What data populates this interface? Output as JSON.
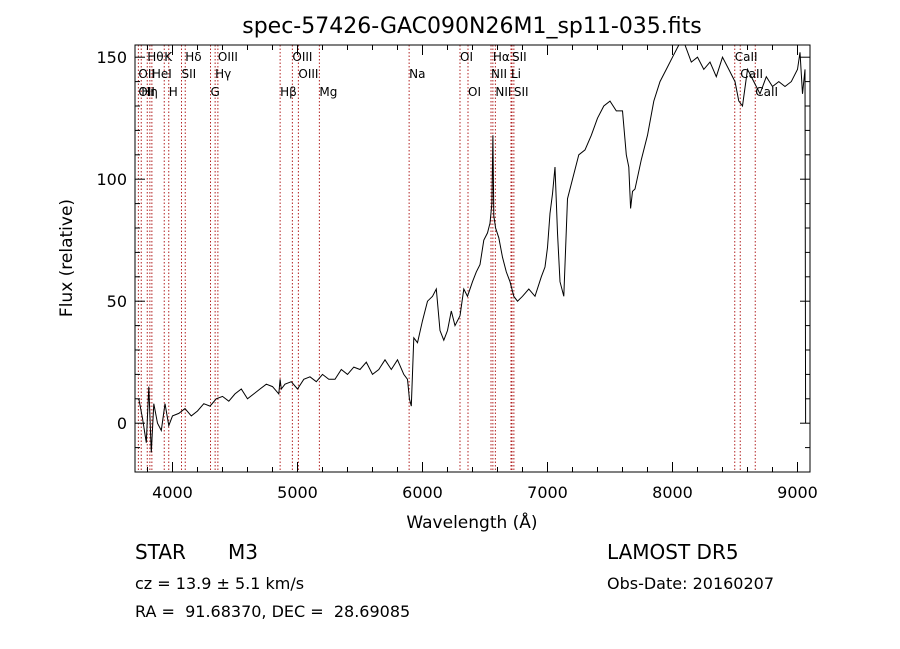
{
  "chart_data": {
    "type": "line",
    "title": "spec-57426-GAC090N26M1_sp11-035.fits",
    "xlabel": "Wavelength (Å)",
    "ylabel": "Flux (relative)",
    "xlim": [
      3700,
      9100
    ],
    "ylim": [
      -20,
      155
    ],
    "x_ticks": [
      4000,
      5000,
      6000,
      7000,
      8000,
      9000
    ],
    "x_tick_labels": [
      "4000",
      "5000",
      "6000",
      "7000",
      "8000",
      "9000"
    ],
    "y_ticks": [
      0,
      50,
      100,
      150
    ],
    "y_tick_labels": [
      "0",
      "50",
      "100",
      "150"
    ],
    "grid": false,
    "series": [
      {
        "color": "#000000",
        "x": [
          3730,
          3760,
          3790,
          3810,
          3830,
          3850,
          3880,
          3910,
          3940,
          3970,
          4000,
          4050,
          4100,
          4150,
          4200,
          4250,
          4300,
          4350,
          4400,
          4450,
          4500,
          4550,
          4600,
          4650,
          4700,
          4750,
          4800,
          4850,
          4861,
          4870,
          4900,
          4950,
          5000,
          5050,
          5100,
          5150,
          5200,
          5250,
          5300,
          5350,
          5400,
          5450,
          5500,
          5550,
          5600,
          5650,
          5700,
          5750,
          5800,
          5850,
          5880,
          5895,
          5910,
          5930,
          5960,
          6000,
          6040,
          6080,
          6110,
          6140,
          6170,
          6200,
          6230,
          6260,
          6300,
          6330,
          6360,
          6400,
          6430,
          6460,
          6490,
          6520,
          6540,
          6555,
          6563,
          6570,
          6585,
          6610,
          6640,
          6670,
          6700,
          6730,
          6760,
          6800,
          6850,
          6900,
          6950,
          6980,
          7000,
          7020,
          7040,
          7060,
          7080,
          7100,
          7130,
          7160,
          7200,
          7250,
          7300,
          7350,
          7400,
          7450,
          7500,
          7550,
          7600,
          7630,
          7650,
          7665,
          7680,
          7700,
          7750,
          7800,
          7850,
          7900,
          7950,
          8000,
          8050,
          8100,
          8150,
          8200,
          8250,
          8300,
          8350,
          8400,
          8450,
          8500,
          8530,
          8560,
          8600,
          8650,
          8700,
          8750,
          8800,
          8850,
          8900,
          8950,
          9000,
          9020,
          9040,
          9060,
          9065
        ],
        "y": [
          10,
          2,
          -8,
          15,
          -12,
          8,
          0,
          -3,
          8,
          -1,
          3,
          4,
          6,
          3,
          5,
          8,
          7,
          10,
          11,
          9,
          12,
          14,
          10,
          12,
          14,
          16,
          15,
          12,
          18,
          14,
          16,
          17,
          14,
          18,
          19,
          17,
          20,
          18,
          18,
          22,
          20,
          23,
          22,
          25,
          20,
          22,
          26,
          22,
          26,
          20,
          18,
          10,
          7,
          35,
          33,
          42,
          50,
          52,
          55,
          38,
          34,
          38,
          46,
          40,
          44,
          55,
          52,
          58,
          62,
          65,
          75,
          78,
          82,
          90,
          118,
          85,
          80,
          76,
          68,
          62,
          58,
          52,
          50,
          52,
          55,
          52,
          60,
          64,
          72,
          86,
          94,
          105,
          78,
          58,
          52,
          92,
          100,
          110,
          112,
          118,
          125,
          130,
          132,
          128,
          128,
          110,
          105,
          88,
          95,
          96,
          108,
          118,
          132,
          140,
          145,
          150,
          155,
          155,
          148,
          150,
          145,
          148,
          142,
          150,
          145,
          140,
          132,
          130,
          145,
          140,
          135,
          142,
          138,
          140,
          138,
          140,
          145,
          152,
          135,
          145,
          0
        ]
      }
    ],
    "lines": [
      {
        "wavelength": 3727,
        "label": "OII"
      },
      {
        "wavelength": 3750,
        "label": "Hη"
      },
      {
        "wavelength": 3798,
        "label": "Hθ"
      },
      {
        "wavelength": 3819,
        "label": "HeI"
      },
      {
        "wavelength": 3835,
        "label": "Hη"
      },
      {
        "wavelength": 3934,
        "label": "K"
      },
      {
        "wavelength": 3970,
        "label": "H"
      },
      {
        "wavelength": 4072,
        "label": "SII"
      },
      {
        "wavelength": 4102,
        "label": "Hδ"
      },
      {
        "wavelength": 4304,
        "label": "G"
      },
      {
        "wavelength": 4341,
        "label": "Hγ"
      },
      {
        "wavelength": 4363,
        "label": "OIII"
      },
      {
        "wavelength": 4861,
        "label": "Hβ"
      },
      {
        "wavelength": 4959,
        "label": "OIII"
      },
      {
        "wavelength": 5007,
        "label": "OIII"
      },
      {
        "wavelength": 5175,
        "label": "Mg"
      },
      {
        "wavelength": 5893,
        "label": "Na"
      },
      {
        "wavelength": 6300,
        "label": "OI"
      },
      {
        "wavelength": 6364,
        "label": "OI"
      },
      {
        "wavelength": 6548,
        "label": "NII"
      },
      {
        "wavelength": 6563,
        "label": "Hα"
      },
      {
        "wavelength": 6583,
        "label": "NII"
      },
      {
        "wavelength": 6708,
        "label": "Li"
      },
      {
        "wavelength": 6716,
        "label": "SII"
      },
      {
        "wavelength": 6731,
        "label": "SII"
      },
      {
        "wavelength": 8498,
        "label": "CaII"
      },
      {
        "wavelength": 8542,
        "label": "CaII"
      },
      {
        "wavelength": 8662,
        "label": "CaII"
      }
    ],
    "line_label_rows": [
      [
        {
          "text": "Hθ",
          "wavelength": 3798
        },
        {
          "text": "K",
          "wavelength": 3934
        },
        {
          "text": "Hδ",
          "wavelength": 4102
        },
        {
          "text": "OIII",
          "wavelength": 4363
        },
        {
          "text": "OIII",
          "wavelength": 4959
        },
        {
          "text": "OI",
          "wavelength": 6300
        },
        {
          "text": "Hα",
          "wavelength": 6563
        },
        {
          "text": "SII",
          "wavelength": 6716
        },
        {
          "text": "CaII",
          "wavelength": 8498
        }
      ],
      [
        {
          "text": "OII",
          "wavelength": 3727
        },
        {
          "text": "HeI",
          "wavelength": 3835
        },
        {
          "text": "SII",
          "wavelength": 4072
        },
        {
          "text": "Hγ",
          "wavelength": 4341
        },
        {
          "text": "OIII",
          "wavelength": 5007
        },
        {
          "text": "Na",
          "wavelength": 5893
        },
        {
          "text": "NII",
          "wavelength": 6548
        },
        {
          "text": "Li",
          "wavelength": 6708
        },
        {
          "text": "CaII",
          "wavelength": 8542
        }
      ],
      [
        {
          "text": "OII",
          "wavelength": 3727
        },
        {
          "text": "Hη",
          "wavelength": 3750
        },
        {
          "text": "H",
          "wavelength": 3970
        },
        {
          "text": "G",
          "wavelength": 4304
        },
        {
          "text": "Hβ",
          "wavelength": 4861
        },
        {
          "text": "Mg",
          "wavelength": 5175
        },
        {
          "text": "OI",
          "wavelength": 6364
        },
        {
          "text": "NII",
          "wavelength": 6583
        },
        {
          "text": "SII",
          "wavelength": 6731
        },
        {
          "text": "CaII",
          "wavelength": 8662
        }
      ]
    ],
    "line_color": "#b22222"
  },
  "info": {
    "class": "STAR",
    "subclass": "M3",
    "cz": "cz = 13.9 ± 5.1 km/s",
    "radec": "RA =  91.68370, DEC =  28.69085",
    "survey": "LAMOST DR5",
    "obsdate": "Obs-Date: 20160207"
  }
}
